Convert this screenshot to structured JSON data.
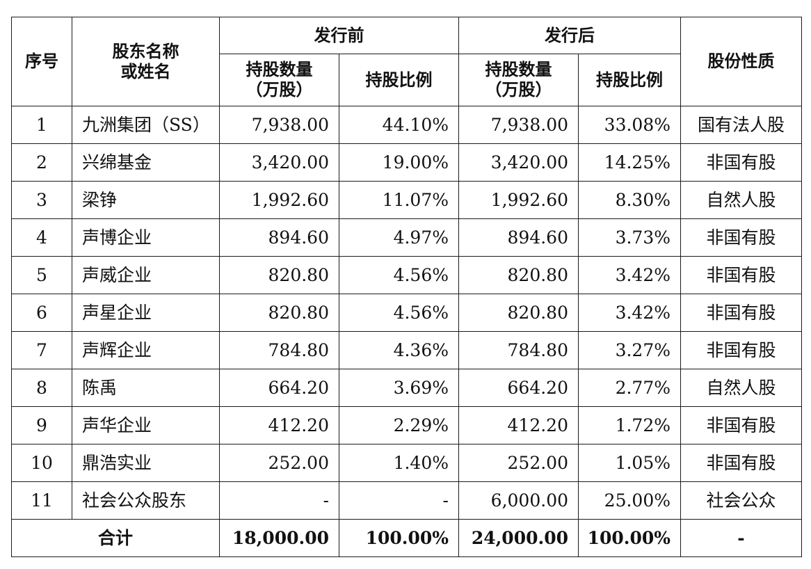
{
  "headers": {
    "index": "序号",
    "name_line1": "股东名称",
    "name_line2": "或姓名",
    "before_issue": "发行前",
    "after_issue": "发行后",
    "share_nature": "股份性质",
    "shares_qty_line1": "持股数量",
    "shares_qty_line2": "（万股）",
    "share_ratio": "持股比例"
  },
  "rows": [
    {
      "index": "1",
      "name": "九洲集团（SS）",
      "before_qty": "7,938.00",
      "before_ratio": "44.10%",
      "after_qty": "7,938.00",
      "after_ratio": "33.08%",
      "nature": "国有法人股"
    },
    {
      "index": "2",
      "name": "兴绵基金",
      "before_qty": "3,420.00",
      "before_ratio": "19.00%",
      "after_qty": "3,420.00",
      "after_ratio": "14.25%",
      "nature": "非国有股"
    },
    {
      "index": "3",
      "name": "梁铮",
      "before_qty": "1,992.60",
      "before_ratio": "11.07%",
      "after_qty": "1,992.60",
      "after_ratio": "8.30%",
      "nature": "自然人股"
    },
    {
      "index": "4",
      "name": "声博企业",
      "before_qty": "894.60",
      "before_ratio": "4.97%",
      "after_qty": "894.60",
      "after_ratio": "3.73%",
      "nature": "非国有股"
    },
    {
      "index": "5",
      "name": "声威企业",
      "before_qty": "820.80",
      "before_ratio": "4.56%",
      "after_qty": "820.80",
      "after_ratio": "3.42%",
      "nature": "非国有股"
    },
    {
      "index": "6",
      "name": "声星企业",
      "before_qty": "820.80",
      "before_ratio": "4.56%",
      "after_qty": "820.80",
      "after_ratio": "3.42%",
      "nature": "非国有股"
    },
    {
      "index": "7",
      "name": "声辉企业",
      "before_qty": "784.80",
      "before_ratio": "4.36%",
      "after_qty": "784.80",
      "after_ratio": "3.27%",
      "nature": "非国有股"
    },
    {
      "index": "8",
      "name": "陈禹",
      "before_qty": "664.20",
      "before_ratio": "3.69%",
      "after_qty": "664.20",
      "after_ratio": "2.77%",
      "nature": "自然人股"
    },
    {
      "index": "9",
      "name": "声华企业",
      "before_qty": "412.20",
      "before_ratio": "2.29%",
      "after_qty": "412.20",
      "after_ratio": "1.72%",
      "nature": "非国有股"
    },
    {
      "index": "10",
      "name": "鼎浩实业",
      "before_qty": "252.00",
      "before_ratio": "1.40%",
      "after_qty": "252.00",
      "after_ratio": "1.05%",
      "nature": "非国有股"
    },
    {
      "index": "11",
      "name": "社会公众股东",
      "before_qty": "-",
      "before_ratio": "-",
      "after_qty": "6,000.00",
      "after_ratio": "25.00%",
      "nature": "社会公众"
    }
  ],
  "total": {
    "label": "合计",
    "before_qty": "18,000.00",
    "before_ratio": "100.00%",
    "after_qty": "24,000.00",
    "after_ratio": "100.00%",
    "nature": "-"
  }
}
